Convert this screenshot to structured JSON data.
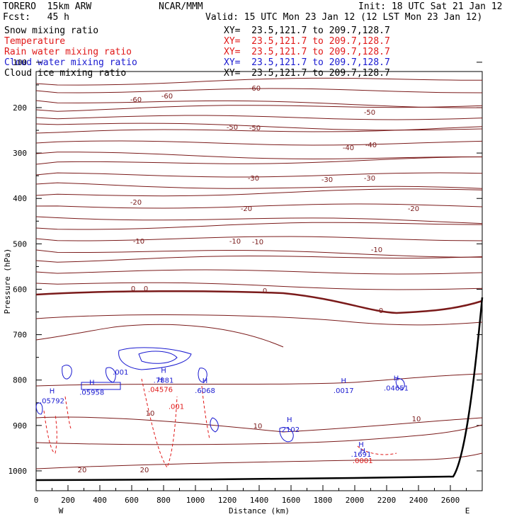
{
  "header": {
    "model": "TORERO  15km ARW",
    "org": "NCAR/MMM",
    "init": "Init: 18 UTC Sat 21 Jan 12",
    "fcst": "Fcst:   45 h",
    "valid": "Valid: 15 UTC Mon 23 Jan 12 (12 LST Mon 23 Jan 12)"
  },
  "fields": [
    {
      "label": "Snow mixing ratio",
      "xy": "XY=  23.5,121.7 to 209.7,128.7",
      "color": "#000000"
    },
    {
      "label": "Temperature",
      "xy": "XY=  23.5,121.7 to 209.7,128.7",
      "color": "#e01818"
    },
    {
      "label": "Rain water mixing ratio",
      "xy": "XY=  23.5,121.7 to 209.7,128.7",
      "color": "#e01818"
    },
    {
      "label": "Cloud water mixing ratio",
      "xy": "XY=  23.5,121.7 to 209.7,128.7",
      "color": "#1a1ad0"
    },
    {
      "label": "Cloud ice mixing ratio",
      "xy": "XY=  23.5,121.7 to 209.7,128.7",
      "color": "#000000"
    }
  ],
  "chart_data": {
    "type": "contour",
    "xlabel": "Distance (km)",
    "ylabel": "Pressure (hPa)",
    "xlim": [
      0,
      2800
    ],
    "ylim": [
      1030,
      100
    ],
    "x_ticks": [
      "0",
      "200",
      "400",
      "600",
      "800",
      "1000",
      "1200",
      "1400",
      "1600",
      "1800",
      "2000",
      "2200",
      "2400",
      "2600"
    ],
    "y_ticks": [
      "100",
      "200",
      "300",
      "400",
      "500",
      "600",
      "700",
      "800",
      "900",
      "1000"
    ],
    "x_end_labels": {
      "left": "W",
      "right": "E"
    },
    "temperature_contours": [
      {
        "value": -60,
        "labels": [
          "-60",
          "-60",
          "-60"
        ],
        "pressure": 155
      },
      {
        "value": -50,
        "labels": [
          "-50",
          "-50",
          "-50"
        ],
        "pressure": 240
      },
      {
        "value": -40,
        "labels": [
          "-40",
          "-40"
        ],
        "pressure": 300
      },
      {
        "value": -30,
        "labels": [
          "-30",
          "-30",
          "-30"
        ],
        "pressure": 370
      },
      {
        "value": -20,
        "labels": [
          "-20",
          "-20",
          "-20"
        ],
        "pressure": 450
      },
      {
        "value": -10,
        "labels": [
          "-10",
          "-10",
          "-10",
          "-10"
        ],
        "pressure": 520
      },
      {
        "value": 0,
        "labels": [
          "0",
          "0",
          "0",
          "0"
        ],
        "pressure": 610
      },
      {
        "value": 10,
        "labels": [
          "10",
          "10",
          "10"
        ],
        "pressure": 900
      },
      {
        "value": 20,
        "labels": [
          "20",
          "20"
        ],
        "pressure": 1005
      }
    ],
    "maxima": [
      {
        "marker": "H",
        "value": ".7881",
        "x_km": 800,
        "p": 800
      },
      {
        "marker": "H",
        "value": ".04576",
        "x_km": 780,
        "p": 820
      },
      {
        "marker": "H",
        "value": ".6068",
        "x_km": 1060,
        "p": 822
      },
      {
        "marker": "H",
        "value": ".0017",
        "x_km": 1930,
        "p": 822
      },
      {
        "marker": "H",
        "value": ".04651",
        "x_km": 2260,
        "p": 817
      },
      {
        "marker": "H",
        "value": ".2102",
        "x_km": 1590,
        "p": 908
      },
      {
        "marker": "H",
        "value": ".1691",
        "x_km": 2040,
        "p": 963
      },
      {
        "marker": "H",
        "value": ".0001",
        "x_km": 2050,
        "p": 977
      },
      {
        "marker": "H",
        "value": ".05792",
        "x_km": 100,
        "p": 845
      },
      {
        "marker": "H",
        "value": ".05958",
        "x_km": 350,
        "p": 826
      },
      {
        "marker": "",
        "value": ".001",
        "x_km": 530,
        "p": 782
      },
      {
        "marker": "",
        "value": ".001",
        "x_km": 880,
        "p": 857
      }
    ]
  }
}
